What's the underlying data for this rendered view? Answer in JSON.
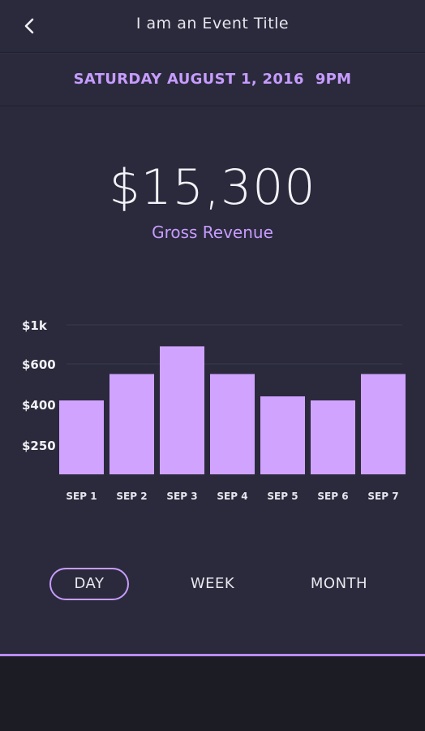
{
  "header": {
    "title": "I am an Event Title",
    "back_icon": "chevron-left-icon"
  },
  "event": {
    "date": "SATURDAY AUGUST 1, 2016",
    "time": "9PM"
  },
  "revenue": {
    "amount": "$15,300",
    "label": "Gross Revenue"
  },
  "colors": {
    "background": "#2a2a3c",
    "accent": "#c79cff",
    "bar": "#d0a3ff",
    "bottom_bar": "#1c1c25"
  },
  "chart_data": {
    "type": "bar",
    "categories": [
      "SEP 1",
      "SEP 2",
      "SEP 3",
      "SEP 4",
      "SEP 5",
      "SEP 6",
      "SEP 7"
    ],
    "values": [
      420,
      550,
      780,
      550,
      440,
      420,
      550
    ],
    "y_tick_values": [
      250,
      400,
      600,
      1000
    ],
    "y_tick_labels": [
      "$250",
      "$400",
      "$600",
      "$1k"
    ],
    "gridlines": [
      600,
      1000
    ],
    "title": "",
    "xlabel": "",
    "ylabel": ""
  },
  "range_selector": {
    "options": [
      "DAY",
      "WEEK",
      "MONTH"
    ],
    "selected": "DAY"
  }
}
